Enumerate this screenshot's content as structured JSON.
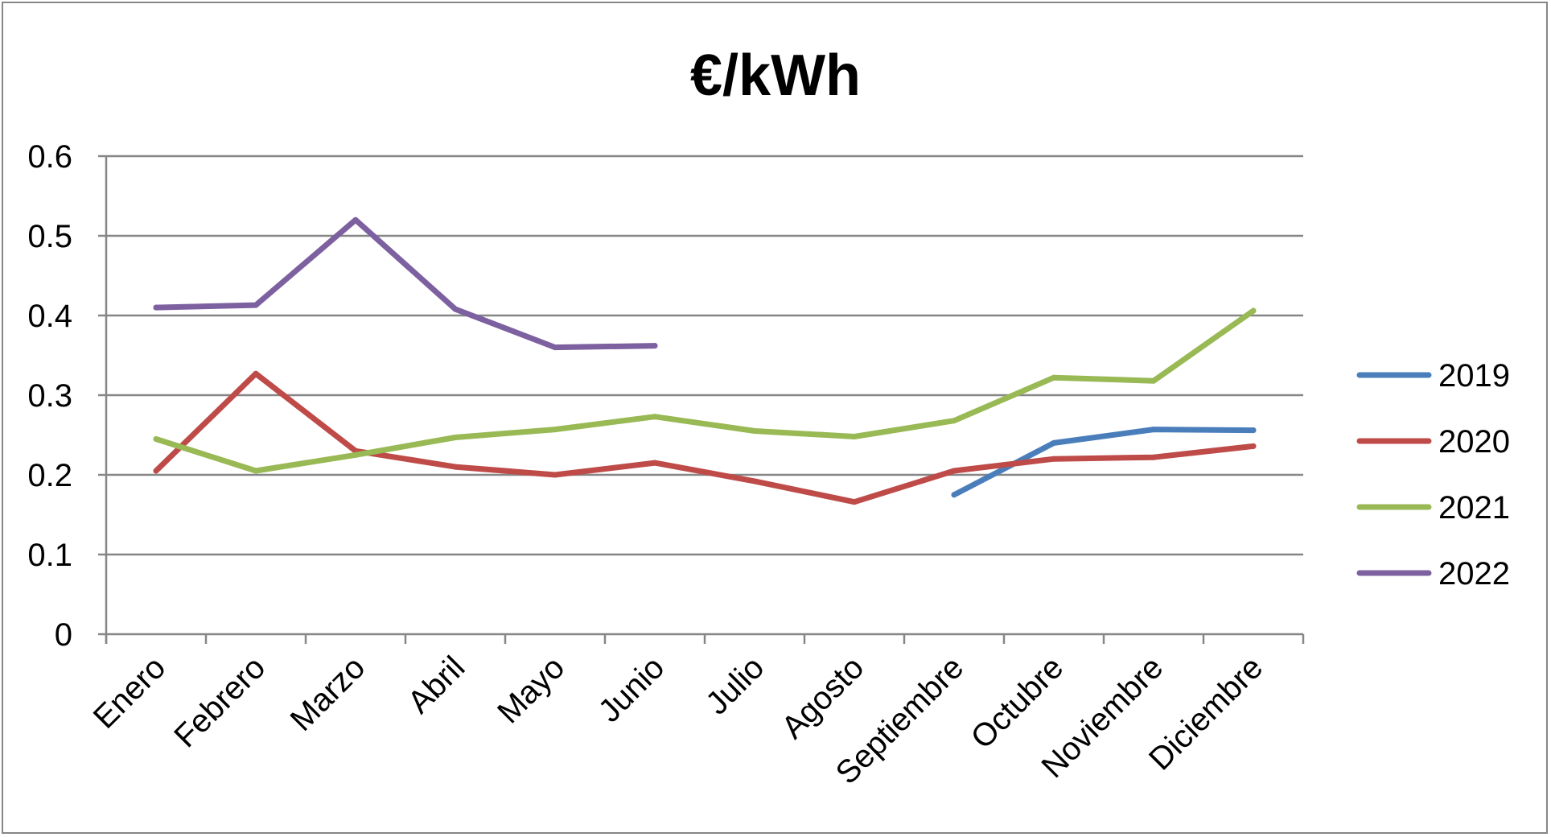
{
  "chart_data": {
    "type": "line",
    "title": "€/kWh",
    "xlabel": "",
    "ylabel": "",
    "categories": [
      "Enero",
      "Febrero",
      "Marzo",
      "Abril",
      "Mayo",
      "Junio",
      "Julio",
      "Agosto",
      "Septiembre",
      "Octubre",
      "Noviembre",
      "Diciembre"
    ],
    "ylim": [
      0,
      0.6
    ],
    "yticks": [
      "0",
      "0.1",
      "0.2",
      "0.3",
      "0.4",
      "0.5",
      "0.6"
    ],
    "grid": "horizontal",
    "legend_position": "right",
    "series": [
      {
        "name": "2019",
        "color": "#4A7EBB",
        "values": [
          null,
          null,
          null,
          null,
          null,
          null,
          null,
          null,
          0.175,
          0.24,
          0.257,
          0.256
        ]
      },
      {
        "name": "2020",
        "color": "#BE4B48",
        "values": [
          0.205,
          0.327,
          0.23,
          0.21,
          0.2,
          0.215,
          0.192,
          0.166,
          0.205,
          0.22,
          0.222,
          0.236
        ]
      },
      {
        "name": "2021",
        "color": "#98B954",
        "values": [
          0.245,
          0.205,
          0.225,
          0.247,
          0.257,
          0.273,
          0.255,
          0.248,
          0.268,
          0.322,
          0.318,
          0.406
        ]
      },
      {
        "name": "2022",
        "color": "#7D60A0",
        "values": [
          0.41,
          0.413,
          0.52,
          0.408,
          0.36,
          0.362,
          null,
          null,
          null,
          null,
          null,
          null
        ]
      }
    ]
  }
}
